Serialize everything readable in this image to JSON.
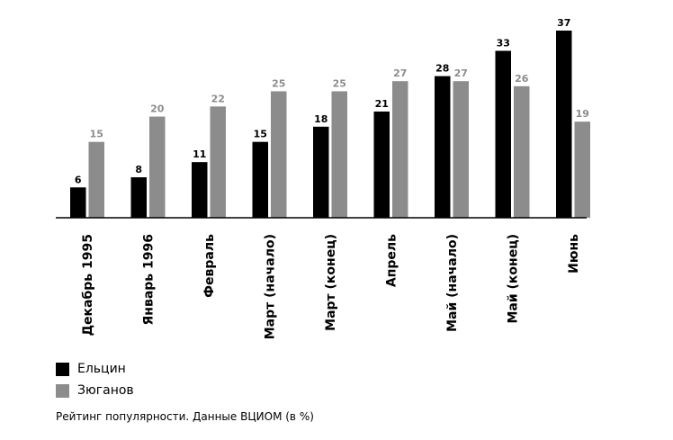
{
  "chart_data": {
    "type": "bar",
    "title": "",
    "caption": "Рейтинг популярности. Данные ВЦИОМ (в %)",
    "xlabel": "",
    "ylabel": "",
    "ylim": [
      0,
      37
    ],
    "grid": false,
    "legend_position": "bottom-left",
    "categories": [
      "Декабрь 1995",
      "Январь 1996",
      "Февраль",
      "Март (начало)",
      "Март (конец)",
      "Апрель",
      "Май (начало)",
      "Май (конец)",
      "Июнь"
    ],
    "series": [
      {
        "name": "Ельцин",
        "color": "#000000",
        "label_color": "#000000",
        "values": [
          6,
          8,
          11,
          15,
          18,
          21,
          28,
          33,
          37
        ]
      },
      {
        "name": "Зюганов",
        "color": "#8c8c8c",
        "label_color": "#8c8c8c",
        "values": [
          15,
          20,
          22,
          25,
          25,
          27,
          27,
          26,
          19
        ]
      }
    ]
  }
}
